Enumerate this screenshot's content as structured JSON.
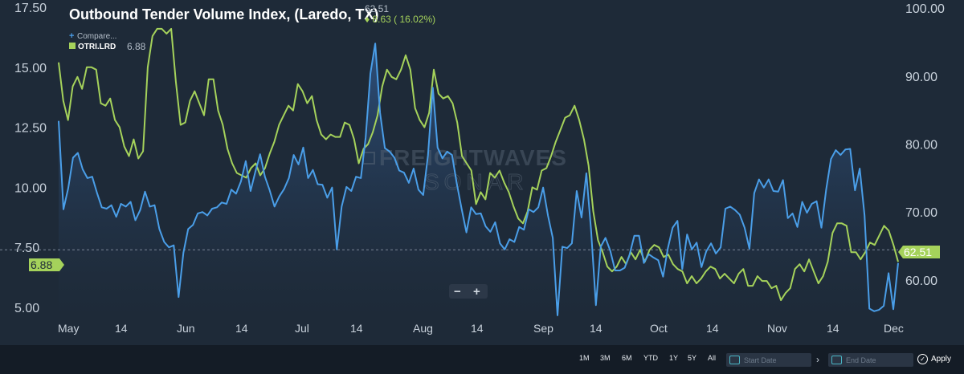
{
  "chart_data": {
    "type": "line",
    "title": "Outbound Tender Volume Index, (Laredo, TX)",
    "title_value": "62.51",
    "title_change": "♦ 8.63 ( 16.02%)",
    "legend": [
      {
        "label": "Compare...",
        "value": "",
        "marker": "+"
      },
      {
        "label": "OTRI.LRD",
        "value": "6.88",
        "marker": "square"
      }
    ],
    "x_ticks": [
      "May",
      "14",
      "Jun",
      "14",
      "Jul",
      "14",
      "Aug",
      "14",
      "Sep",
      "14",
      "Oct",
      "14",
      "Nov",
      "14",
      "Dec"
    ],
    "y_left_ticks": [
      "17.50",
      "15.00",
      "12.50",
      "10.00",
      "7.50",
      "5.00"
    ],
    "y_left_range": [
      4.5,
      17.8
    ],
    "y_right_ticks": [
      "100.00",
      "90.00",
      "80.00",
      "70.00",
      "60.00"
    ],
    "y_right_range": [
      54.2,
      101.2
    ],
    "series": [
      {
        "name": "OTRI.LRD",
        "axis": "left",
        "color": "#a5d25b",
        "end_value": "6.88",
        "values": [
          15.2,
          13.6,
          12.8,
          14.2,
          14.6,
          14.1,
          15.0,
          15.0,
          14.9,
          13.5,
          13.4,
          13.7,
          12.8,
          12.5,
          11.7,
          11.3,
          12.0,
          11.2,
          11.5,
          15.0,
          16.3,
          16.6,
          16.6,
          16.4,
          16.6,
          14.4,
          12.6,
          12.7,
          13.6,
          14.0,
          13.5,
          13.0,
          14.5,
          14.5,
          13.2,
          12.6,
          11.6,
          11.0,
          10.6,
          10.5,
          10.4,
          10.8,
          11.0,
          10.5,
          10.8,
          11.4,
          11.9,
          12.6,
          13.0,
          13.4,
          13.2,
          14.3,
          14.0,
          13.5,
          13.8,
          12.8,
          12.2,
          12.0,
          12.2,
          12.1,
          12.1,
          12.7,
          12.6,
          12.0,
          11.0,
          11.6,
          11.8,
          12.3,
          13.0,
          14.2,
          14.9,
          14.6,
          14.5,
          14.9,
          15.5,
          14.9,
          13.3,
          12.8,
          12.5,
          13.1,
          14.9,
          13.9,
          13.7,
          13.8,
          13.5,
          12.7,
          11.3,
          11.0,
          10.7,
          9.3,
          9.8,
          9.5,
          10.6,
          10.4,
          10.7,
          10.2,
          9.8,
          9.2,
          8.7,
          8.5,
          9.0,
          10.0,
          9.9,
          10.7,
          10.8,
          11.3,
          11.9,
          12.4,
          12.9,
          13.0,
          13.4,
          12.8,
          12.0,
          10.9,
          9.0,
          7.8,
          7.3,
          6.7,
          6.5,
          6.7,
          7.1,
          6.8,
          7.3,
          7.0,
          7.4,
          6.9,
          7.4,
          7.6,
          7.5,
          7.1,
          7.2,
          6.8,
          6.6,
          6.5,
          6.0,
          6.3,
          6.0,
          6.2,
          6.5,
          6.7,
          6.6,
          6.2,
          6.4,
          6.2,
          6.0,
          6.4,
          6.6,
          5.9,
          5.9,
          6.3,
          6.1,
          6.1,
          5.8,
          5.9,
          5.3,
          5.6,
          5.8,
          6.6,
          6.8,
          6.5,
          7.0,
          6.5,
          6.0,
          6.3,
          6.9,
          8.1,
          8.5,
          8.5,
          8.4,
          7.3,
          7.3,
          7.0,
          7.3,
          7.7,
          7.6,
          8.0,
          8.4,
          8.2,
          7.6,
          6.9
        ]
      },
      {
        "name": "Comparison",
        "axis": "right",
        "color": "#4a9ee8",
        "end_value": "62.51",
        "values": [
          83.4,
          70.4,
          73.5,
          78.0,
          78.7,
          76.3,
          75.0,
          75.2,
          72.8,
          70.7,
          70.5,
          71.0,
          69.3,
          71.2,
          70.8,
          71.5,
          68.8,
          70.3,
          73.0,
          70.8,
          71.0,
          67.5,
          65.6,
          64.8,
          65.1,
          57.5,
          64.0,
          67.5,
          68.1,
          69.8,
          70.0,
          69.5,
          70.5,
          70.7,
          71.4,
          71.2,
          73.3,
          72.7,
          74.5,
          77.5,
          73.1,
          75.9,
          78.5,
          75.2,
          73.2,
          70.8,
          72.3,
          73.4,
          75.0,
          78.4,
          77.0,
          79.5,
          75.0,
          76.2,
          74.1,
          74.0,
          72.1,
          73.6,
          64.5,
          70.8,
          73.7,
          73.1,
          75.2,
          75.0,
          81.0,
          90.4,
          94.8,
          84.6,
          79.4,
          78.9,
          78.0,
          76.1,
          75.8,
          74.3,
          76.4,
          73.3,
          72.5,
          78.4,
          88.3,
          79.5,
          77.9,
          78.9,
          78.4,
          74.2,
          70.5,
          67.0,
          70.7,
          69.7,
          69.8,
          67.9,
          67.1,
          68.5,
          65.4,
          64.5,
          66.0,
          65.6,
          67.8,
          67.4,
          70.4,
          70.0,
          70.7,
          73.6,
          69.5,
          66.2,
          54.8,
          64.9,
          64.7,
          65.4,
          73.1,
          69.2,
          75.7,
          67.3,
          56.3,
          64.9,
          66.2,
          64.3,
          61.4,
          61.4,
          61.8,
          63.7,
          66.5,
          66.5,
          62.5,
          63.8,
          63.3,
          62.9,
          60.5,
          64.7,
          67.7,
          68.7,
          61.6,
          66.7,
          64.5,
          65.5,
          61.9,
          64.2,
          65.4,
          63.9,
          64.8,
          70.5,
          70.8,
          70.3,
          69.6,
          67.7,
          64.6,
          72.8,
          74.8,
          73.6,
          74.8,
          73.1,
          73.0,
          74.7,
          69.1,
          69.8,
          67.8,
          71.5,
          69.9,
          71.2,
          71.6,
          67.7,
          73.3,
          77.8,
          79.1,
          78.4,
          79.2,
          79.3,
          73.2,
          76.4,
          69.5,
          55.8,
          55.4,
          55.6,
          56.2,
          61.0,
          55.7,
          62.5
        ]
      }
    ],
    "crosshair_value": 7.4,
    "zoom_controls": {
      "minus": "−",
      "plus": "+"
    },
    "watermark": {
      "line1": "FREIGHTWAVES",
      "line2": "SONAR"
    },
    "grid": false
  },
  "range_buttons": [
    "1M",
    "3M",
    "6M",
    "YTD",
    "1Y",
    "5Y",
    "All"
  ],
  "date_range": {
    "start_placeholder": "Start Date",
    "end_placeholder": "End Date",
    "arrow": "›"
  },
  "apply_label": "Apply",
  "colors": {
    "background": "#1e2a38",
    "bottom_bar": "#141c26",
    "green": "#a5d25b",
    "blue": "#4a9ee8"
  }
}
